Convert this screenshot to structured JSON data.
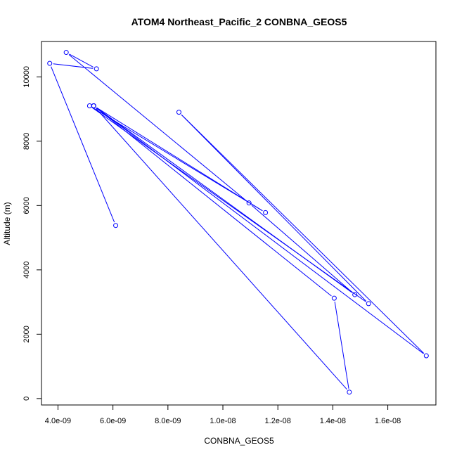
{
  "chart_data": {
    "type": "line",
    "title": "ATOM4 Northeast_Pacific_2 CONBNA_GEOS5",
    "xlabel": "CONBNA_GEOS5",
    "ylabel": "Altitude (m)",
    "xlim": [
      3.4e-09,
      1.775e-08
    ],
    "ylim": [
      -200,
      11100
    ],
    "x_ticks": [
      4e-09,
      6e-09,
      8e-09,
      1e-08,
      1.2e-08,
      1.4e-08,
      1.6e-08
    ],
    "x_tick_labels": [
      "4.0e-09",
      "6.0e-09",
      "8.0e-09",
      "1.0e-08",
      "1.2e-08",
      "1.4e-08",
      "1.6e-08"
    ],
    "y_ticks": [
      0,
      2000,
      4000,
      6000,
      8000,
      10000
    ],
    "y_tick_labels": [
      "0",
      "2000",
      "4000",
      "6000",
      "8000",
      "10000"
    ],
    "grid": false,
    "series": [
      {
        "color": "#0000ff",
        "marker": "open-circle",
        "points": [
          {
            "x": 6.1e-09,
            "y": 5380
          },
          {
            "x": 3.7e-09,
            "y": 10420
          },
          {
            "x": 5.4e-09,
            "y": 10250
          },
          {
            "x": 4.3e-09,
            "y": 10760
          },
          {
            "x": 1.095e-08,
            "y": 6080
          },
          {
            "x": 1.48e-08,
            "y": 3230
          },
          {
            "x": 5.3e-09,
            "y": 9100
          },
          {
            "x": 1.155e-08,
            "y": 5780
          },
          {
            "x": 5.15e-09,
            "y": 9100
          },
          {
            "x": 1.53e-08,
            "y": 2950
          },
          {
            "x": 8.4e-09,
            "y": 8900
          },
          {
            "x": 1.74e-08,
            "y": 1330
          },
          {
            "x": 5.3e-09,
            "y": 9100
          },
          {
            "x": 1.405e-08,
            "y": 3120
          },
          {
            "x": 1.46e-08,
            "y": 200
          },
          {
            "x": 5.3e-09,
            "y": 9100
          }
        ]
      }
    ]
  }
}
